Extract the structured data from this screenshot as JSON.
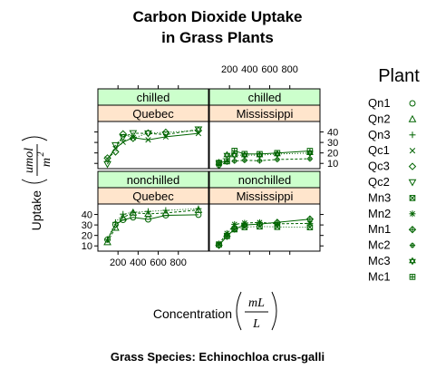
{
  "chart_data": {
    "type": "line",
    "title_lines": [
      "Carbon Dioxide Uptake",
      "in Grass Plants"
    ],
    "subtitle": "Grass Species: Echinochloa crus-galli",
    "xlabel": "Concentration",
    "xlabel_unit": {
      "numerator": "mL",
      "denominator": "L"
    },
    "ylabel": "Uptake",
    "ylabel_unit": {
      "numerator": "umol",
      "denominator": "m",
      "denominator_exponent": "2"
    },
    "x": [
      95,
      175,
      250,
      350,
      500,
      675,
      1000
    ],
    "xlim": [
      0,
      1100
    ],
    "ylim": [
      5,
      50
    ],
    "x_ticks": [
      200,
      400,
      600,
      800
    ],
    "y_ticks": [
      10,
      20,
      30,
      40
    ],
    "strip_colors": {
      "treatment": "#ccffcc",
      "type": "#ffe5cc"
    },
    "line_color": "#006400",
    "legend": {
      "title": "Plant",
      "entries": [
        {
          "name": "Qn1",
          "symbol": "circle"
        },
        {
          "name": "Qn2",
          "symbol": "triangle"
        },
        {
          "name": "Qn3",
          "symbol": "plus"
        },
        {
          "name": "Qc1",
          "symbol": "cross"
        },
        {
          "name": "Qc3",
          "symbol": "diamond"
        },
        {
          "name": "Qc2",
          "symbol": "triangle-down"
        },
        {
          "name": "Mn3",
          "symbol": "square-x"
        },
        {
          "name": "Mn2",
          "symbol": "asterisk"
        },
        {
          "name": "Mn1",
          "symbol": "diamond-plus"
        },
        {
          "name": "Mc2",
          "symbol": "circle-plus"
        },
        {
          "name": "Mc3",
          "symbol": "star-of-david"
        },
        {
          "name": "Mc1",
          "symbol": "square-plus"
        }
      ]
    },
    "panels": [
      {
        "treatment": "chilled",
        "type": "Quebec",
        "series": [
          {
            "name": "Qc1",
            "values": [
              14.2,
              24.1,
              30.3,
              34.6,
              32.5,
              35.4,
              38.7
            ]
          },
          {
            "name": "Qc2",
            "values": [
              9.3,
              27.3,
              35.0,
              38.8,
              38.6,
              37.5,
              42.4
            ]
          },
          {
            "name": "Qc3",
            "values": [
              15.1,
              21.0,
              38.1,
              34.0,
              38.9,
              39.6,
              41.4
            ]
          }
        ]
      },
      {
        "treatment": "chilled",
        "type": "Mississippi",
        "series": [
          {
            "name": "Mc1",
            "values": [
              10.5,
              12.0,
              22.0,
              19.0,
              18.9,
              19.9,
              21.9
            ]
          },
          {
            "name": "Mc2",
            "values": [
              7.7,
              11.4,
              12.3,
              13.0,
              12.5,
              13.7,
              14.4
            ]
          },
          {
            "name": "Mc3",
            "values": [
              10.6,
              18.0,
              17.9,
              17.9,
              17.9,
              18.9,
              19.9
            ]
          }
        ]
      },
      {
        "treatment": "nonchilled",
        "type": "Quebec",
        "series": [
          {
            "name": "Qn1",
            "values": [
              16.0,
              30.4,
              34.8,
              37.2,
              35.3,
              39.2,
              39.7
            ]
          },
          {
            "name": "Qn2",
            "values": [
              13.6,
              27.3,
              37.1,
              41.8,
              40.6,
              41.4,
              44.3
            ]
          },
          {
            "name": "Qn3",
            "values": [
              16.2,
              32.4,
              40.3,
              42.1,
              42.9,
              43.9,
              45.5
            ]
          }
        ]
      },
      {
        "treatment": "nonchilled",
        "type": "Mississippi",
        "series": [
          {
            "name": "Mn1",
            "values": [
              10.6,
              19.2,
              26.2,
              30.0,
              30.9,
              32.4,
              35.5
            ]
          },
          {
            "name": "Mn2",
            "values": [
              12.0,
              22.0,
              30.6,
              31.8,
              32.4,
              31.1,
              31.5
            ]
          },
          {
            "name": "Mn3",
            "values": [
              11.3,
              19.4,
              25.8,
              27.9,
              28.5,
              28.1,
              27.8
            ]
          }
        ]
      }
    ]
  }
}
